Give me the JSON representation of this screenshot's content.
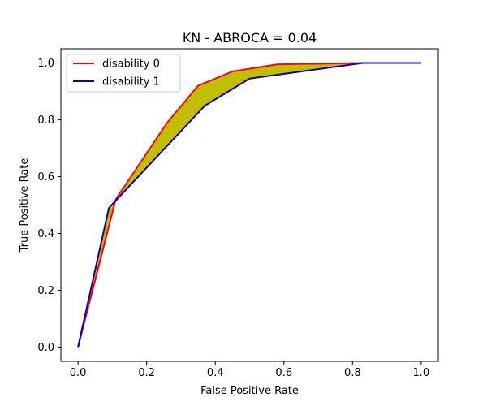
{
  "chart_data": {
    "type": "line",
    "title": "KN - ABROCA = 0.04",
    "xlabel": "False Positive Rate",
    "ylabel": "True Positive Rate",
    "xlim": [
      -0.05,
      1.05
    ],
    "ylim": [
      -0.05,
      1.05
    ],
    "xticks": [
      0.0,
      0.2,
      0.4,
      0.6,
      0.8,
      1.0
    ],
    "xtick_labels": [
      "0.0",
      "0.2",
      "0.4",
      "0.6",
      "0.8",
      "1.0"
    ],
    "yticks": [
      0.0,
      0.2,
      0.4,
      0.6,
      0.8,
      1.0
    ],
    "ytick_labels": [
      "0.0",
      "0.2",
      "0.4",
      "0.6",
      "0.8",
      "1.0"
    ],
    "grid": false,
    "legend_position": "upper-left",
    "fill_between": {
      "color": "#bfbf00"
    },
    "series": [
      {
        "name": "disability 0",
        "color": "#ff0000",
        "x": [
          0.0,
          0.11,
          0.26,
          0.35,
          0.45,
          0.58,
          0.82,
          1.0
        ],
        "y": [
          0.0,
          0.52,
          0.79,
          0.92,
          0.97,
          0.995,
          1.0,
          1.0
        ]
      },
      {
        "name": "disability 1",
        "color": "#0000cc",
        "x": [
          0.0,
          0.09,
          0.37,
          0.5,
          0.83,
          1.0
        ],
        "y": [
          0.0,
          0.49,
          0.85,
          0.945,
          1.0,
          1.0
        ]
      }
    ]
  }
}
